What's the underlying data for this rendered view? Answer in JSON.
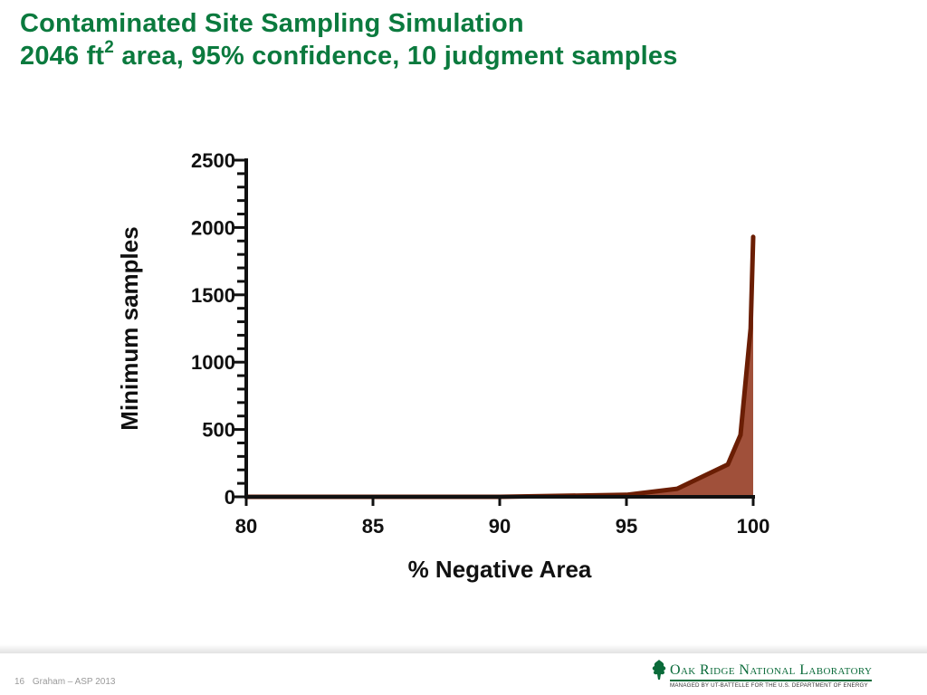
{
  "slide": {
    "title_line1": "Contaminated Site Sampling Simulation",
    "title_line2_pre": "2046 ft",
    "title_line2_sup": "2",
    "title_line2_post": " area, 95% confidence, 10 judgment samples"
  },
  "chart_data": {
    "type": "area",
    "xlabel": "% Negative Area",
    "ylabel": "Minimum samples",
    "xlim": [
      80,
      100
    ],
    "ylim": [
      0,
      2500
    ],
    "x_ticks": [
      80,
      85,
      90,
      95,
      100
    ],
    "y_ticks": [
      0,
      500,
      1000,
      1500,
      2000,
      2500
    ],
    "grid": false,
    "legend": "none",
    "series": [
      {
        "x": [
          80,
          85,
          90,
          95,
          97,
          99,
          99.5,
          99.9,
          100
        ],
        "y": [
          0,
          0,
          0,
          15,
          60,
          240,
          460,
          1250,
          1930
        ]
      }
    ],
    "colors": {
      "line": "#6b1e04",
      "fill": "#a0503a",
      "axis": "#111111"
    }
  },
  "footer": {
    "page_number": "16",
    "author": "Graham – ASP 2013",
    "logo_name": "Oak Ridge National Laboratory",
    "logo_tagline": "MANAGED BY UT-BATTELLE FOR THE U.S. DEPARTMENT OF ENERGY",
    "logo_icon": "oak-leaf-icon"
  }
}
